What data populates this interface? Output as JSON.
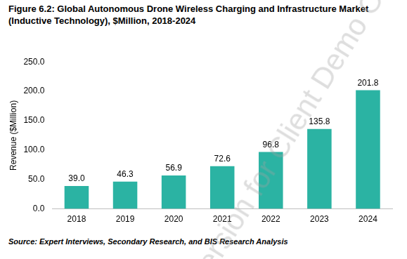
{
  "chart_data": {
    "type": "bar",
    "title": "Figure 6.2: Global Autonomous Drone Wireless Charging and Infrastructure Market (Inductive Technology), $Million, 2018-2024",
    "y_label": "Revenue ($Million)",
    "annotations": [
      "Source: Expert Interviews, Secondary Research, and BIS Research Analysis",
      "Version for Client Demo Only"
    ],
    "categories": [
      "2018",
      "2019",
      "2020",
      "2021",
      "2022",
      "2023",
      "2024"
    ],
    "values": [
      39.0,
      46.3,
      56.9,
      72.6,
      96.8,
      135.8,
      201.8
    ],
    "value_labels": [
      "39.0",
      "46.3",
      "56.9",
      "72.6",
      "96.8",
      "135.8",
      "201.8"
    ],
    "data_labels": true,
    "color": "#2bb3a3",
    "ylim": [
      0,
      250
    ],
    "yticks": [
      {
        "value": 0,
        "label": "0.0"
      },
      {
        "value": 50,
        "label": "50.0"
      },
      {
        "value": 100,
        "label": "100.0"
      },
      {
        "value": 150,
        "label": "150.0"
      },
      {
        "value": 200,
        "label": "200.0"
      },
      {
        "value": 250,
        "label": "250.0"
      }
    ],
    "grid": false,
    "legend": false
  }
}
